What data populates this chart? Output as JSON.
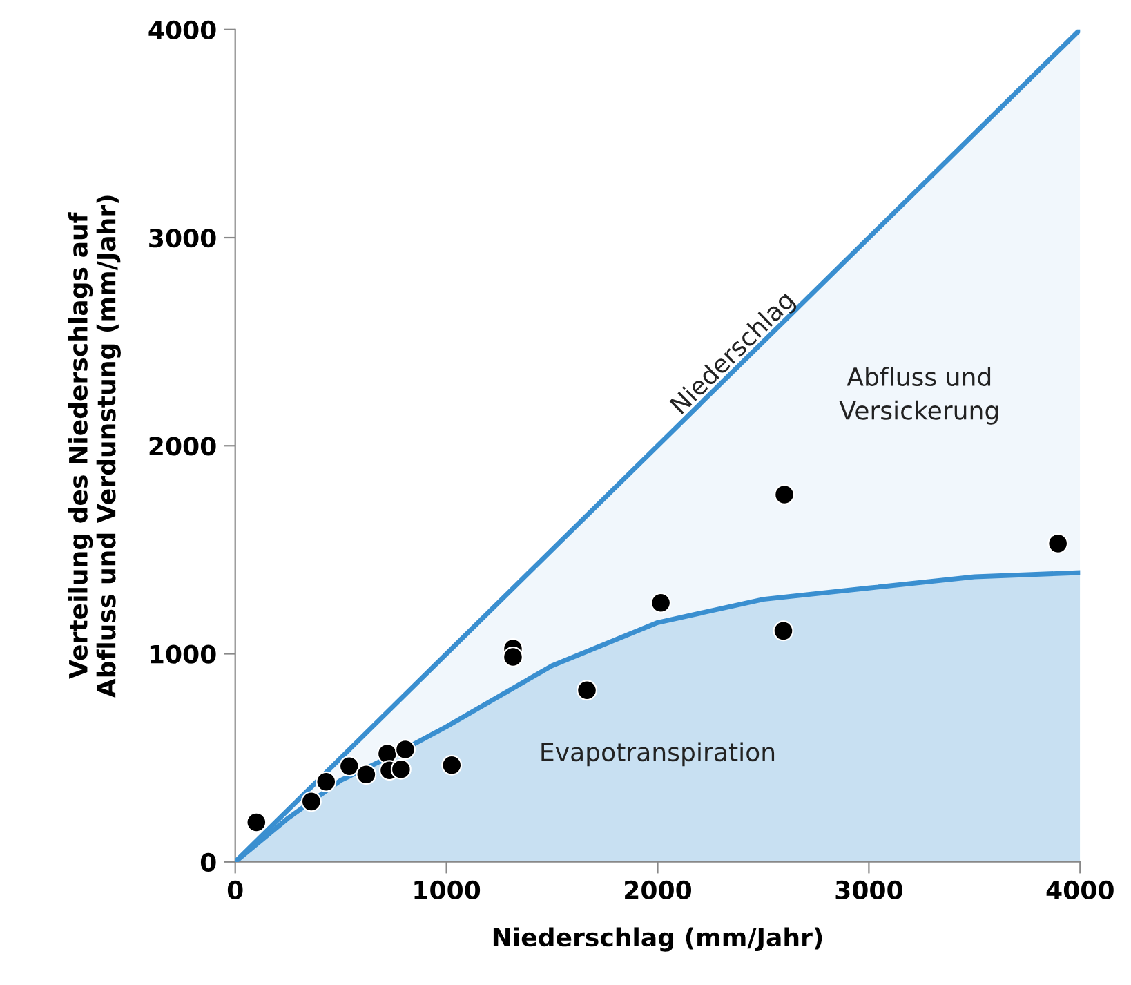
{
  "chart_data": {
    "type": "area",
    "xlabel": "Niederschlag (mm/Jahr)",
    "ylabel": "Verteilung des Niederschlags auf\nAbfluss und Verdunstung (mm/Jahr)",
    "xlim": [
      0,
      4000
    ],
    "ylim": [
      0,
      4000
    ],
    "xticks": [
      0,
      1000,
      2000,
      3000,
      4000
    ],
    "yticks": [
      0,
      1000,
      2000,
      3000,
      4000
    ],
    "grid": false,
    "legend": false,
    "series": [
      {
        "name": "Niederschlag",
        "color": "#3a8fd0",
        "x": [
          0,
          4000
        ],
        "values": [
          0,
          4000
        ]
      },
      {
        "name": "Evapotranspiration",
        "color": "#3a8fd0",
        "x": [
          0,
          250,
          500,
          750,
          1000,
          1500,
          2000,
          2500,
          3000,
          3500,
          4000
        ],
        "values": [
          0,
          210,
          392,
          514,
          650,
          943,
          1150,
          1262,
          1316,
          1370,
          1390
        ]
      },
      {
        "type": "scatter",
        "color": "#000000",
        "marker": "circle",
        "x": [
          100,
          360,
          430,
          540,
          620,
          720,
          730,
          785,
          805,
          1025,
          1315,
          1315,
          1665,
          2015,
          2600,
          2595,
          3895
        ],
        "values": [
          190,
          290,
          385,
          460,
          420,
          520,
          440,
          445,
          540,
          465,
          1025,
          985,
          825,
          1245,
          1765,
          1110,
          1530
        ]
      }
    ],
    "annotations": [
      "Abfluss und\nVersickerung"
    ]
  }
}
